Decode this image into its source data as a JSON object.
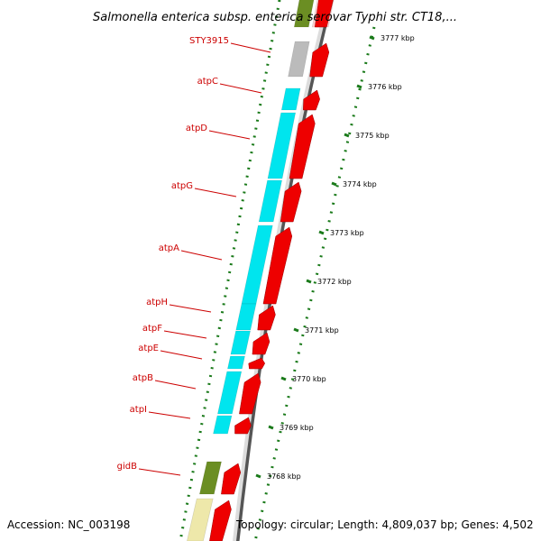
{
  "title": "Salmonella enterica subsp. enterica serovar Typhi str. CT18,...",
  "footer": {
    "accession": "Accession: NC_003198",
    "topology": "Topology: circular; Length: 4,809,037 bp; Genes: 4,502"
  },
  "colors": {
    "cyan_gene": "#00e5ee",
    "red_gene": "#ee0000",
    "gray_gene": "#bbbbbb",
    "olive_gene": "#6b8e23",
    "khaki_gene": "#eee8aa",
    "label_red": "#cc0000",
    "tick_green": "#1a7a1a",
    "backbone": "#888888"
  },
  "ticks": [
    {
      "label": "3777 kbp"
    },
    {
      "label": "3776 kbp"
    },
    {
      "label": "3775 kbp"
    },
    {
      "label": "3774 kbp"
    },
    {
      "label": "3773 kbp"
    },
    {
      "label": "3772 kbp"
    },
    {
      "label": "3771 kbp"
    },
    {
      "label": "3770 kbp"
    },
    {
      "label": "3769 kbp"
    },
    {
      "label": "3768 kbp"
    }
  ],
  "genes": [
    {
      "name": "STY3915",
      "color": "gray"
    },
    {
      "name": "atpC",
      "color": "cyan"
    },
    {
      "name": "atpD",
      "color": "cyan"
    },
    {
      "name": "atpG",
      "color": "cyan"
    },
    {
      "name": "atpA",
      "color": "cyan"
    },
    {
      "name": "atpH",
      "color": "cyan"
    },
    {
      "name": "atpF",
      "color": "cyan"
    },
    {
      "name": "atpE",
      "color": "cyan"
    },
    {
      "name": "atpB",
      "color": "cyan"
    },
    {
      "name": "atpI",
      "color": "cyan"
    },
    {
      "name": "gidB",
      "color": "olive"
    }
  ]
}
